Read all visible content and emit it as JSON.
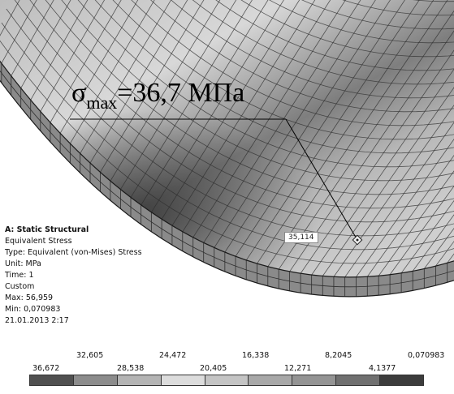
{
  "annotation": {
    "sigma": "σ",
    "subscript": "max",
    "value": "=36,7 МПа"
  },
  "probe": {
    "value": "35,114"
  },
  "info": {
    "title": "A: Static Structural",
    "lines": [
      "Equivalent Stress",
      "Type: Equivalent (von-Mises) Stress",
      "Unit: MPa",
      "Time: 1",
      "Custom",
      "Max: 56,959",
      "Min: 0,070983",
      "21.01.2013 2:17"
    ]
  },
  "legend": {
    "top_labels": [
      "32,605",
      "24,472",
      "16,338",
      "8,2045",
      "0,070983"
    ],
    "bottom_labels": [
      "36,672",
      "28,538",
      "20,405",
      "12,271",
      "4,1377"
    ],
    "colors": [
      "#505050",
      "#8c8c8c",
      "#b4b4b4",
      "#dcdcdc",
      "#c4c4c4",
      "#a8a8a8",
      "#949494",
      "#707070",
      "#3c3c3c"
    ]
  },
  "colors": {
    "mesh_light": "#d6d6d6",
    "mesh_mid": "#9a9a9a",
    "mesh_dark": "#5a5a5a",
    "grid_line": "#2e2e2e",
    "edge_face": "#8a8a8a"
  }
}
